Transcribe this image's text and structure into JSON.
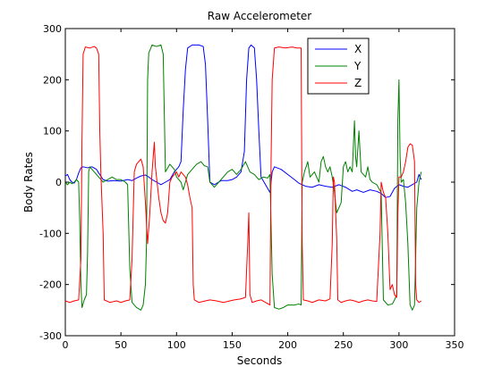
{
  "chart_data": {
    "type": "line",
    "title": "Raw Accelerometer",
    "xlabel": "Seconds",
    "ylabel": "Body Rates",
    "xlim": [
      0,
      350
    ],
    "ylim": [
      -300,
      300
    ],
    "xticks": [
      0,
      50,
      100,
      150,
      200,
      250,
      300,
      350
    ],
    "yticks": [
      -300,
      -200,
      -100,
      0,
      100,
      200,
      300
    ],
    "grid": false,
    "legend_position": "top-right",
    "series": [
      {
        "name": "X",
        "color": "#0000ff",
        "points": [
          [
            0,
            12
          ],
          [
            2,
            15
          ],
          [
            4,
            5
          ],
          [
            6,
            0
          ],
          [
            8,
            -2
          ],
          [
            10,
            5
          ],
          [
            12,
            18
          ],
          [
            14,
            28
          ],
          [
            16,
            30
          ],
          [
            20,
            28
          ],
          [
            24,
            30
          ],
          [
            28,
            25
          ],
          [
            30,
            18
          ],
          [
            34,
            5
          ],
          [
            38,
            2
          ],
          [
            44,
            3
          ],
          [
            50,
            2
          ],
          [
            56,
            5
          ],
          [
            60,
            3
          ],
          [
            64,
            8
          ],
          [
            68,
            12
          ],
          [
            72,
            14
          ],
          [
            75,
            10
          ],
          [
            78,
            5
          ],
          [
            82,
            0
          ],
          [
            86,
            -5
          ],
          [
            90,
            0
          ],
          [
            94,
            5
          ],
          [
            98,
            20
          ],
          [
            102,
            30
          ],
          [
            104,
            40
          ],
          [
            106,
            140
          ],
          [
            108,
            220
          ],
          [
            110,
            262
          ],
          [
            114,
            268
          ],
          [
            120,
            268
          ],
          [
            124,
            265
          ],
          [
            126,
            230
          ],
          [
            128,
            120
          ],
          [
            130,
            0
          ],
          [
            134,
            -5
          ],
          [
            140,
            3
          ],
          [
            146,
            3
          ],
          [
            150,
            5
          ],
          [
            154,
            10
          ],
          [
            158,
            20
          ],
          [
            161,
            60
          ],
          [
            163,
            200
          ],
          [
            165,
            262
          ],
          [
            167,
            268
          ],
          [
            170,
            262
          ],
          [
            172,
            200
          ],
          [
            174,
            100
          ],
          [
            176,
            10
          ],
          [
            180,
            -5
          ],
          [
            184,
            -20
          ],
          [
            186,
            20
          ],
          [
            188,
            30
          ],
          [
            194,
            25
          ],
          [
            200,
            15
          ],
          [
            206,
            5
          ],
          [
            210,
            -2
          ],
          [
            216,
            -8
          ],
          [
            222,
            -10
          ],
          [
            228,
            -5
          ],
          [
            234,
            -8
          ],
          [
            240,
            -10
          ],
          [
            246,
            -5
          ],
          [
            252,
            -10
          ],
          [
            258,
            -18
          ],
          [
            262,
            -15
          ],
          [
            268,
            -20
          ],
          [
            274,
            -15
          ],
          [
            280,
            -18
          ],
          [
            284,
            -22
          ],
          [
            288,
            -30
          ],
          [
            292,
            -28
          ],
          [
            296,
            -12
          ],
          [
            300,
            -5
          ],
          [
            304,
            -8
          ],
          [
            308,
            -10
          ],
          [
            312,
            -5
          ],
          [
            316,
            0
          ],
          [
            318,
            15
          ],
          [
            320,
            5
          ]
        ]
      },
      {
        "name": "Y",
        "color": "#008000",
        "points": [
          [
            0,
            0
          ],
          [
            2,
            -5
          ],
          [
            4,
            0
          ],
          [
            6,
            -3
          ],
          [
            8,
            0
          ],
          [
            10,
            5
          ],
          [
            12,
            0
          ],
          [
            13,
            -80
          ],
          [
            14,
            -200
          ],
          [
            15,
            -245
          ],
          [
            17,
            -230
          ],
          [
            19,
            -220
          ],
          [
            20,
            -140
          ],
          [
            21,
            20
          ],
          [
            22,
            30
          ],
          [
            26,
            20
          ],
          [
            30,
            10
          ],
          [
            34,
            0
          ],
          [
            38,
            5
          ],
          [
            42,
            10
          ],
          [
            46,
            5
          ],
          [
            50,
            5
          ],
          [
            54,
            0
          ],
          [
            56,
            -5
          ],
          [
            58,
            -170
          ],
          [
            60,
            -235
          ],
          [
            64,
            -245
          ],
          [
            68,
            -250
          ],
          [
            70,
            -240
          ],
          [
            72,
            -200
          ],
          [
            73,
            -120
          ],
          [
            74,
            200
          ],
          [
            75,
            252
          ],
          [
            78,
            268
          ],
          [
            82,
            265
          ],
          [
            86,
            268
          ],
          [
            88,
            250
          ],
          [
            90,
            20
          ],
          [
            94,
            35
          ],
          [
            98,
            25
          ],
          [
            100,
            10
          ],
          [
            104,
            0
          ],
          [
            106,
            -15
          ],
          [
            108,
            0
          ],
          [
            110,
            15
          ],
          [
            114,
            25
          ],
          [
            118,
            35
          ],
          [
            122,
            40
          ],
          [
            125,
            32
          ],
          [
            128,
            30
          ],
          [
            130,
            0
          ],
          [
            134,
            -10
          ],
          [
            138,
            0
          ],
          [
            142,
            10
          ],
          [
            146,
            20
          ],
          [
            150,
            25
          ],
          [
            154,
            15
          ],
          [
            158,
            25
          ],
          [
            162,
            40
          ],
          [
            166,
            20
          ],
          [
            170,
            15
          ],
          [
            172,
            10
          ],
          [
            174,
            5
          ],
          [
            178,
            10
          ],
          [
            182,
            8
          ],
          [
            184,
            15
          ],
          [
            186,
            -180
          ],
          [
            188,
            -245
          ],
          [
            192,
            -248
          ],
          [
            196,
            -245
          ],
          [
            200,
            -240
          ],
          [
            206,
            -240
          ],
          [
            210,
            -238
          ],
          [
            212,
            -240
          ],
          [
            213,
            0
          ],
          [
            215,
            20
          ],
          [
            218,
            40
          ],
          [
            220,
            10
          ],
          [
            224,
            20
          ],
          [
            228,
            0
          ],
          [
            230,
            40
          ],
          [
            232,
            50
          ],
          [
            234,
            30
          ],
          [
            236,
            20
          ],
          [
            238,
            30
          ],
          [
            240,
            10
          ],
          [
            242,
            -20
          ],
          [
            244,
            -60
          ],
          [
            246,
            -50
          ],
          [
            248,
            -40
          ],
          [
            250,
            30
          ],
          [
            252,
            40
          ],
          [
            254,
            20
          ],
          [
            256,
            30
          ],
          [
            258,
            20
          ],
          [
            260,
            120
          ],
          [
            261,
            50
          ],
          [
            262,
            30
          ],
          [
            264,
            100
          ],
          [
            266,
            20
          ],
          [
            268,
            15
          ],
          [
            270,
            10
          ],
          [
            272,
            30
          ],
          [
            274,
            5
          ],
          [
            276,
            0
          ],
          [
            280,
            -5
          ],
          [
            284,
            -20
          ],
          [
            286,
            -230
          ],
          [
            290,
            -240
          ],
          [
            294,
            -238
          ],
          [
            296,
            -230
          ],
          [
            298,
            -220
          ],
          [
            299,
            120
          ],
          [
            300,
            200
          ],
          [
            301,
            50
          ],
          [
            302,
            0
          ],
          [
            304,
            5
          ],
          [
            306,
            -40
          ],
          [
            308,
            -120
          ],
          [
            310,
            -240
          ],
          [
            312,
            -250
          ],
          [
            314,
            -240
          ],
          [
            316,
            -50
          ],
          [
            318,
            0
          ],
          [
            320,
            20
          ]
        ]
      },
      {
        "name": "Z",
        "color": "#ff0000",
        "points": [
          [
            0,
            -232
          ],
          [
            4,
            -235
          ],
          [
            8,
            -232
          ],
          [
            12,
            -230
          ],
          [
            14,
            -150
          ],
          [
            15,
            80
          ],
          [
            16,
            250
          ],
          [
            18,
            264
          ],
          [
            22,
            262
          ],
          [
            26,
            265
          ],
          [
            28,
            262
          ],
          [
            30,
            250
          ],
          [
            31,
            100
          ],
          [
            32,
            15
          ],
          [
            34,
            -100
          ],
          [
            35,
            -230
          ],
          [
            40,
            -235
          ],
          [
            46,
            -232
          ],
          [
            50,
            -235
          ],
          [
            54,
            -232
          ],
          [
            58,
            -230
          ],
          [
            60,
            -150
          ],
          [
            62,
            20
          ],
          [
            64,
            35
          ],
          [
            68,
            45
          ],
          [
            70,
            30
          ],
          [
            72,
            -40
          ],
          [
            74,
            -120
          ],
          [
            76,
            -60
          ],
          [
            78,
            20
          ],
          [
            80,
            78
          ],
          [
            81,
            30
          ],
          [
            82,
            10
          ],
          [
            84,
            -30
          ],
          [
            86,
            -60
          ],
          [
            88,
            -75
          ],
          [
            90,
            -80
          ],
          [
            92,
            -60
          ],
          [
            94,
            0
          ],
          [
            96,
            10
          ],
          [
            98,
            15
          ],
          [
            100,
            20
          ],
          [
            102,
            10
          ],
          [
            104,
            20
          ],
          [
            106,
            15
          ],
          [
            108,
            10
          ],
          [
            110,
            -5
          ],
          [
            112,
            -30
          ],
          [
            114,
            -50
          ],
          [
            115,
            -200
          ],
          [
            116,
            -230
          ],
          [
            120,
            -235
          ],
          [
            126,
            -232
          ],
          [
            130,
            -230
          ],
          [
            136,
            -232
          ],
          [
            142,
            -235
          ],
          [
            148,
            -232
          ],
          [
            152,
            -230
          ],
          [
            158,
            -228
          ],
          [
            162,
            -225
          ],
          [
            164,
            -120
          ],
          [
            165,
            -60
          ],
          [
            166,
            -220
          ],
          [
            168,
            -235
          ],
          [
            172,
            -232
          ],
          [
            176,
            -230
          ],
          [
            180,
            -235
          ],
          [
            184,
            -240
          ],
          [
            185,
            40
          ],
          [
            186,
            200
          ],
          [
            188,
            262
          ],
          [
            192,
            264
          ],
          [
            198,
            262
          ],
          [
            204,
            264
          ],
          [
            208,
            262
          ],
          [
            212,
            262
          ],
          [
            213,
            -120
          ],
          [
            214,
            -230
          ],
          [
            218,
            -232
          ],
          [
            222,
            -235
          ],
          [
            228,
            -230
          ],
          [
            234,
            -232
          ],
          [
            238,
            -228
          ],
          [
            240,
            -120
          ],
          [
            241,
            10
          ],
          [
            242,
            0
          ],
          [
            244,
            -110
          ],
          [
            245,
            -230
          ],
          [
            248,
            -235
          ],
          [
            252,
            -232
          ],
          [
            256,
            -230
          ],
          [
            260,
            -232
          ],
          [
            264,
            -235
          ],
          [
            268,
            -232
          ],
          [
            272,
            -230
          ],
          [
            276,
            -232
          ],
          [
            280,
            -233
          ],
          [
            283,
            -100
          ],
          [
            284,
            0
          ],
          [
            286,
            -20
          ],
          [
            288,
            -30
          ],
          [
            290,
            -100
          ],
          [
            292,
            -210
          ],
          [
            294,
            -200
          ],
          [
            296,
            -220
          ],
          [
            298,
            -225
          ],
          [
            299,
            -60
          ],
          [
            300,
            10
          ],
          [
            302,
            10
          ],
          [
            304,
            20
          ],
          [
            306,
            40
          ],
          [
            308,
            68
          ],
          [
            310,
            75
          ],
          [
            312,
            72
          ],
          [
            314,
            40
          ],
          [
            315,
            -200
          ],
          [
            316,
            -230
          ],
          [
            318,
            -235
          ],
          [
            320,
            -232
          ]
        ]
      }
    ]
  }
}
